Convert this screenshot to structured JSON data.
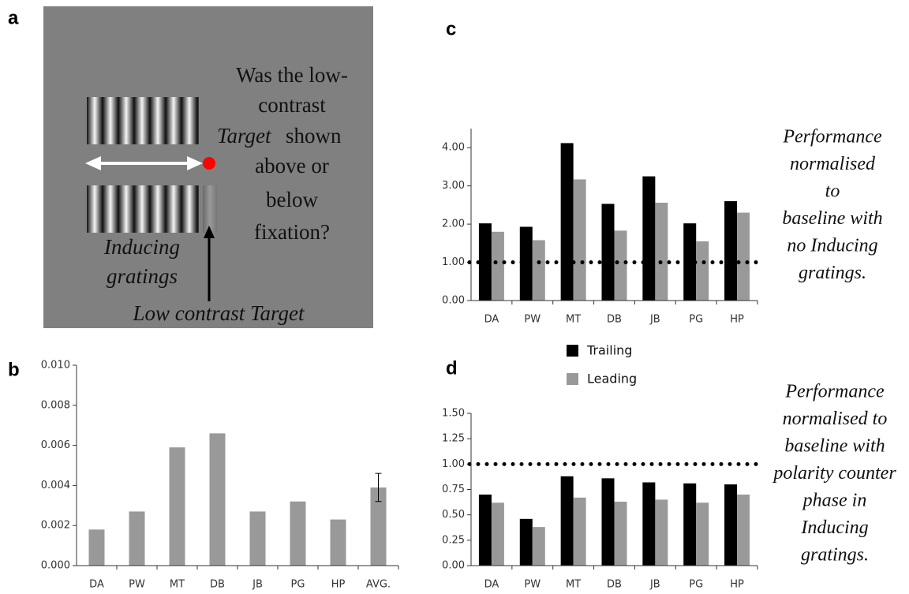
{
  "panel_a": {
    "panel_label": "a",
    "question_lines": [
      "Was the low-",
      "contrast",
      "Target",
      "shown",
      "above or",
      "below",
      "fixation?"
    ],
    "inducing_lines": [
      "Inducing",
      "gratings"
    ],
    "target_label": "Low contrast Target"
  },
  "chart_data": [
    {
      "type": "bar",
      "panel_label": "b",
      "categories": [
        "DA",
        "PW",
        "MT",
        "DB",
        "JB",
        "PG",
        "HP",
        "AVG."
      ],
      "values": [
        0.0018,
        0.0027,
        0.0059,
        0.0066,
        0.0027,
        0.0032,
        0.0023,
        0.0039
      ],
      "errors": [
        null,
        null,
        null,
        null,
        null,
        null,
        null,
        0.0007
      ],
      "color": "#999999",
      "ylim": [
        0,
        0.01
      ],
      "yticks": [
        {
          "value": 0,
          "label": "0.000"
        },
        {
          "value": 0.002,
          "label": "0.002"
        },
        {
          "value": 0.004,
          "label": "0.004"
        },
        {
          "value": 0.006,
          "label": "0.006"
        },
        {
          "value": 0.008,
          "label": "0.008"
        },
        {
          "value": 0.01,
          "label": "0.010"
        }
      ]
    },
    {
      "type": "bar",
      "panel_label": "c",
      "categories": [
        "DA",
        "PW",
        "MT",
        "DB",
        "JB",
        "PG",
        "HP"
      ],
      "series": [
        {
          "name": "Trailing",
          "color": "#000000",
          "values": [
            2.02,
            1.93,
            4.12,
            2.53,
            3.25,
            2.02,
            2.6
          ]
        },
        {
          "name": "Leading",
          "color": "#999999",
          "values": [
            1.8,
            1.58,
            3.17,
            1.83,
            2.56,
            1.55,
            2.3
          ]
        }
      ],
      "reference_line": 1,
      "ylim": [
        0,
        4.5
      ],
      "yticks": [
        {
          "value": 0,
          "label": "0.00"
        },
        {
          "value": 1,
          "label": "1.00"
        },
        {
          "value": 2,
          "label": "2.00"
        },
        {
          "value": 3,
          "label": "3.00"
        },
        {
          "value": 4,
          "label": "4.00"
        }
      ],
      "annotation_lines": [
        "Performance",
        "normalised",
        "to",
        "baseline with",
        "no Inducing",
        "gratings."
      ]
    },
    {
      "type": "bar",
      "panel_label": "d",
      "categories": [
        "DA",
        "PW",
        "MT",
        "DB",
        "JB",
        "PG",
        "HP"
      ],
      "series": [
        {
          "color": "#000000",
          "values": [
            0.7,
            0.46,
            0.88,
            0.86,
            0.82,
            0.81,
            0.8
          ]
        },
        {
          "color": "#999999",
          "values": [
            0.62,
            0.38,
            0.67,
            0.63,
            0.65,
            0.62,
            0.7
          ]
        }
      ],
      "reference_line": 1,
      "ylim": [
        0,
        1.5
      ],
      "yticks": [
        {
          "value": 0,
          "label": "0.00"
        },
        {
          "value": 0.25,
          "label": "0.25"
        },
        {
          "value": 0.5,
          "label": "0.50"
        },
        {
          "value": 0.75,
          "label": "0.75"
        },
        {
          "value": 1,
          "label": "1.00"
        },
        {
          "value": 1.25,
          "label": "1.25"
        },
        {
          "value": 1.5,
          "label": "1.50"
        }
      ],
      "annotation_lines": [
        "Performance",
        "normalised to",
        "baseline with",
        "polarity counter",
        "phase in",
        "Inducing",
        "gratings."
      ]
    }
  ]
}
